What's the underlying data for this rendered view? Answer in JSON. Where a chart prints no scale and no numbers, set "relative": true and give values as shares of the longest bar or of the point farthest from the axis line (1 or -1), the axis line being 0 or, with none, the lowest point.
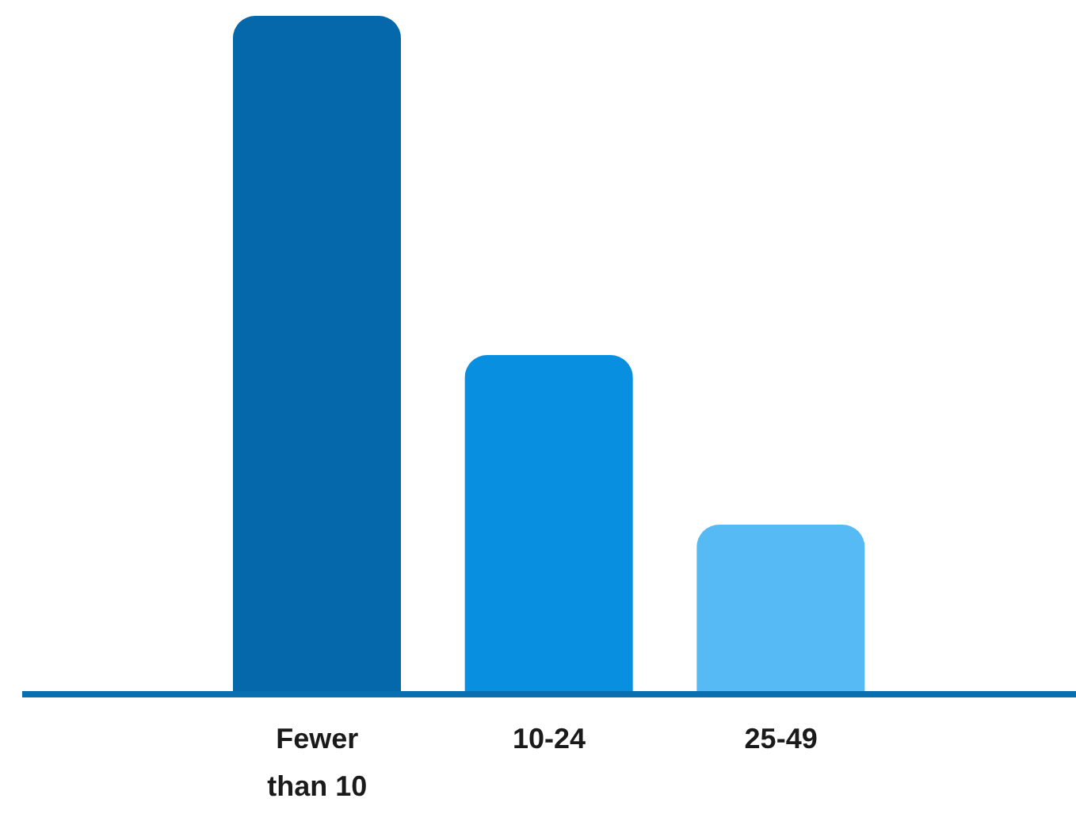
{
  "chart_data": {
    "type": "bar",
    "relative": true,
    "categories": [
      "Fewer than 10",
      "10-24",
      "25-49"
    ],
    "values": [
      1,
      0.5,
      0.25
    ],
    "colors": [
      "#0468ab",
      "#088fe0",
      "#56bbf5"
    ]
  }
}
